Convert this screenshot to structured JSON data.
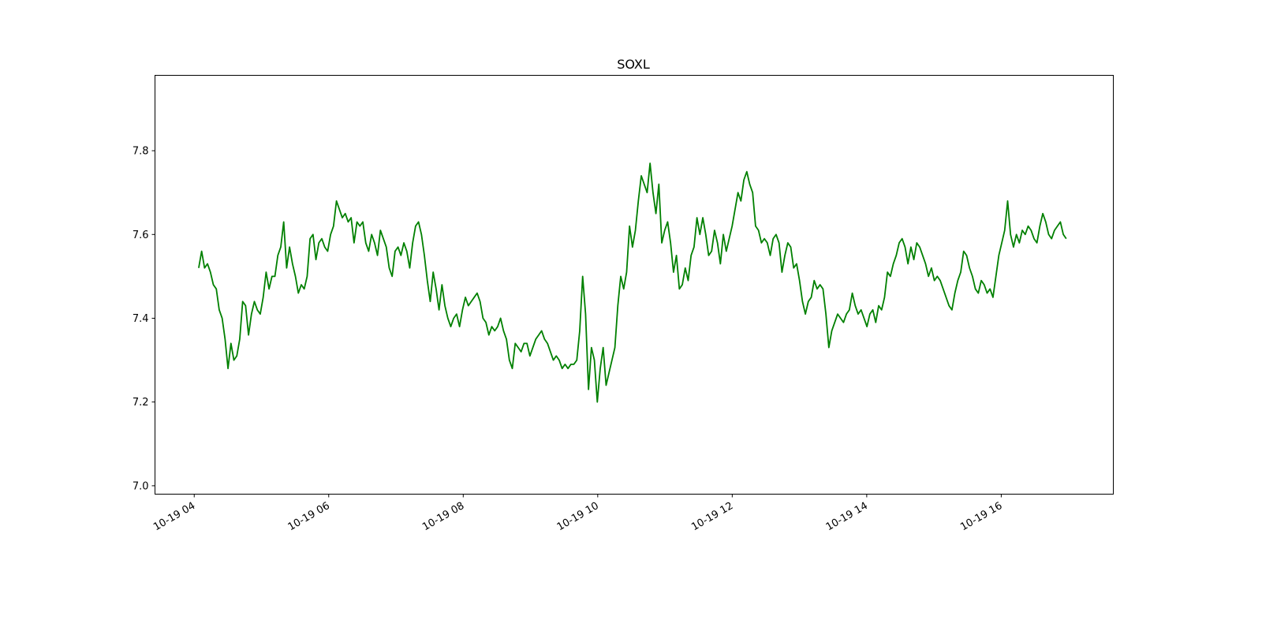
{
  "chart_data": {
    "type": "line",
    "title": "SOXL",
    "xlabel": "",
    "ylabel": "",
    "grid": false,
    "line_color": "#008000",
    "x_range": [
      "10-19 03:25",
      "10-19 17:40"
    ],
    "ylim": [
      6.98,
      7.98
    ],
    "y_ticks": [
      7.0,
      7.2,
      7.4,
      7.6,
      7.8
    ],
    "x_ticks": [
      "10-19 04",
      "10-19 06",
      "10-19 08",
      "10-19 10",
      "10-19 12",
      "10-19 14",
      "10-19 16"
    ],
    "x_tick_times": [
      "10-19 04:00",
      "10-19 06:00",
      "10-19 08:00",
      "10-19 10:00",
      "10-19 12:00",
      "10-19 14:00",
      "10-19 16:00"
    ],
    "series": [
      {
        "x_start": "10-19 04:04",
        "x_end": "10-19 16:58",
        "values": [
          7.52,
          7.56,
          7.52,
          7.53,
          7.51,
          7.48,
          7.47,
          7.42,
          7.4,
          7.35,
          7.28,
          7.34,
          7.3,
          7.31,
          7.35,
          7.44,
          7.43,
          7.36,
          7.41,
          7.44,
          7.42,
          7.41,
          7.45,
          7.51,
          7.47,
          7.5,
          7.5,
          7.55,
          7.57,
          7.63,
          7.52,
          7.57,
          7.53,
          7.5,
          7.46,
          7.48,
          7.47,
          7.5,
          7.59,
          7.6,
          7.54,
          7.58,
          7.59,
          7.57,
          7.56,
          7.6,
          7.62,
          7.68,
          7.66,
          7.64,
          7.65,
          7.63,
          7.64,
          7.58,
          7.63,
          7.62,
          7.63,
          7.58,
          7.56,
          7.6,
          7.58,
          7.55,
          7.61,
          7.59,
          7.57,
          7.52,
          7.5,
          7.56,
          7.57,
          7.55,
          7.58,
          7.56,
          7.52,
          7.58,
          7.62,
          7.63,
          7.6,
          7.55,
          7.49,
          7.44,
          7.51,
          7.47,
          7.42,
          7.48,
          7.43,
          7.4,
          7.38,
          7.4,
          7.41,
          7.38,
          7.42,
          7.45,
          7.43,
          7.44,
          7.45,
          7.46,
          7.44,
          7.4,
          7.39,
          7.36,
          7.38,
          7.37,
          7.38,
          7.4,
          7.37,
          7.35,
          7.3,
          7.28,
          7.34,
          7.33,
          7.32,
          7.34,
          7.34,
          7.31,
          7.33,
          7.35,
          7.36,
          7.37,
          7.35,
          7.34,
          7.32,
          7.3,
          7.31,
          7.3,
          7.28,
          7.29,
          7.28,
          7.29,
          7.29,
          7.3,
          7.37,
          7.5,
          7.41,
          7.23,
          7.33,
          7.3,
          7.2,
          7.28,
          7.33,
          7.24,
          7.27,
          7.3,
          7.33,
          7.43,
          7.5,
          7.47,
          7.51,
          7.62,
          7.57,
          7.61,
          7.68,
          7.74,
          7.72,
          7.7,
          7.77,
          7.7,
          7.65,
          7.72,
          7.58,
          7.61,
          7.63,
          7.58,
          7.51,
          7.55,
          7.47,
          7.48,
          7.52,
          7.49,
          7.55,
          7.57,
          7.64,
          7.6,
          7.64,
          7.6,
          7.55,
          7.56,
          7.61,
          7.58,
          7.53,
          7.6,
          7.56,
          7.59,
          7.62,
          7.66,
          7.7,
          7.68,
          7.73,
          7.75,
          7.72,
          7.7,
          7.62,
          7.61,
          7.58,
          7.59,
          7.58,
          7.55,
          7.59,
          7.6,
          7.58,
          7.51,
          7.55,
          7.58,
          7.57,
          7.52,
          7.53,
          7.49,
          7.44,
          7.41,
          7.44,
          7.45,
          7.49,
          7.47,
          7.48,
          7.47,
          7.41,
          7.33,
          7.37,
          7.39,
          7.41,
          7.4,
          7.39,
          7.41,
          7.42,
          7.46,
          7.43,
          7.41,
          7.42,
          7.4,
          7.38,
          7.41,
          7.42,
          7.39,
          7.43,
          7.42,
          7.45,
          7.51,
          7.5,
          7.53,
          7.55,
          7.58,
          7.59,
          7.57,
          7.53,
          7.57,
          7.54,
          7.58,
          7.57,
          7.55,
          7.53,
          7.5,
          7.52,
          7.49,
          7.5,
          7.49,
          7.47,
          7.45,
          7.43,
          7.42,
          7.46,
          7.49,
          7.51,
          7.56,
          7.55,
          7.52,
          7.5,
          7.47,
          7.46,
          7.49,
          7.48,
          7.46,
          7.47,
          7.45,
          7.5,
          7.55,
          7.58,
          7.61,
          7.68,
          7.6,
          7.57,
          7.6,
          7.58,
          7.61,
          7.6,
          7.62,
          7.61,
          7.59,
          7.58,
          7.62,
          7.65,
          7.63,
          7.6,
          7.59,
          7.61,
          7.62,
          7.63,
          7.6,
          7.59
        ]
      }
    ]
  }
}
